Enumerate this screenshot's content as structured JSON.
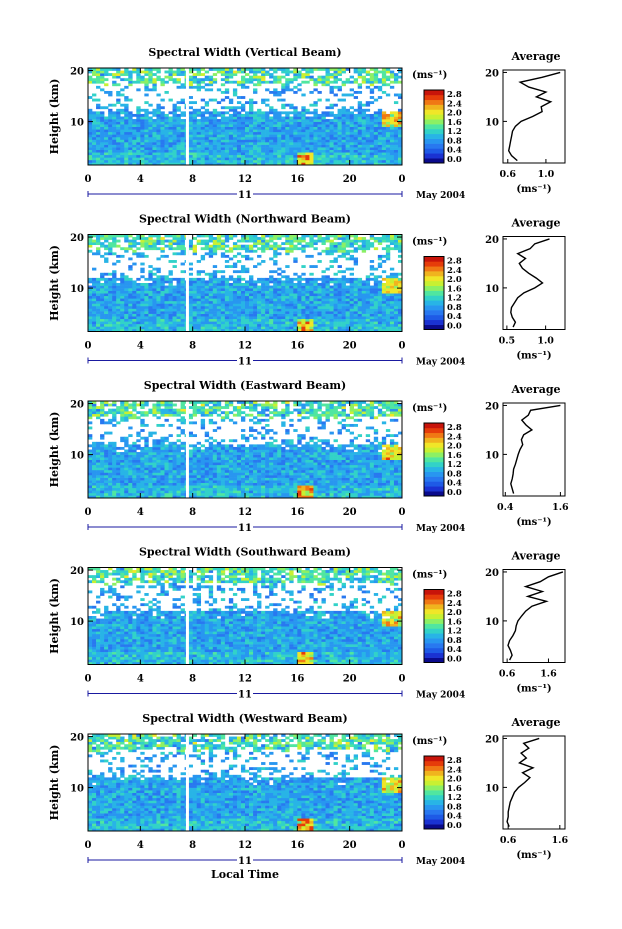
{
  "figure": {
    "x_common_label": "Local Time",
    "date_label": "May 2004",
    "day_label": "11",
    "cbar_unit": "(ms⁻¹)",
    "avg_title": "Average",
    "avg_unit": "(ms⁻¹)",
    "colors": [
      "#0a0a8c",
      "#1a32d2",
      "#1e5ae6",
      "#2878f0",
      "#2896f0",
      "#28b4e6",
      "#32d2c8",
      "#50e6a0",
      "#8cf064",
      "#c8f032",
      "#f0e628",
      "#f0b41e",
      "#f07814",
      "#e63c0a",
      "#c8140a"
    ]
  },
  "chart_data": [
    {
      "type": "heatmap",
      "title": "Spectral Width (Vertical Beam)",
      "xlabel": "",
      "ylabel": "Height (km)",
      "x_ticks": [
        "0",
        "4",
        "8",
        "12",
        "16",
        "20",
        "0"
      ],
      "y_ticks": [
        "20",
        "10"
      ],
      "xlim": [
        0,
        24
      ],
      "ylim": [
        1.5,
        20.5
      ],
      "colorbar": {
        "label": "(ms⁻¹)",
        "ticks": [
          "2.8",
          "2.4",
          "2.0",
          "1.6",
          "1.2",
          "0.8",
          "0.4",
          "0.0"
        ],
        "range": [
          0.0,
          2.8
        ]
      },
      "average_profile": {
        "title": "Average",
        "xlabel": "(ms⁻¹)",
        "x_ticks": [
          "0.6",
          "1.0"
        ],
        "y_ticks": [
          "20",
          "10"
        ],
        "xlim": [
          0.55,
          1.2
        ],
        "heights": [
          2,
          3,
          4,
          5,
          6,
          7,
          8,
          9,
          10,
          11,
          12,
          13,
          14,
          15,
          16,
          17,
          18,
          19,
          20
        ],
        "values": [
          0.7,
          0.64,
          0.61,
          0.62,
          0.63,
          0.64,
          0.65,
          0.68,
          0.74,
          0.86,
          0.96,
          0.95,
          1.05,
          0.9,
          1.0,
          0.82,
          0.73,
          0.96,
          1.15
        ]
      }
    },
    {
      "type": "heatmap",
      "title": "Spectral Width (Northward Beam)",
      "xlabel": "",
      "ylabel": "Height (km)",
      "x_ticks": [
        "0",
        "4",
        "8",
        "12",
        "16",
        "20",
        "0"
      ],
      "y_ticks": [
        "20",
        "10"
      ],
      "xlim": [
        0,
        24
      ],
      "ylim": [
        1.5,
        20.5
      ],
      "colorbar": {
        "label": "(ms⁻¹)",
        "ticks": [
          "2.8",
          "2.4",
          "2.0",
          "1.6",
          "1.2",
          "0.8",
          "0.4",
          "0.0"
        ],
        "range": [
          0.0,
          2.8
        ]
      },
      "average_profile": {
        "title": "Average",
        "xlabel": "(ms⁻¹)",
        "x_ticks": [
          "0.5",
          "1.0"
        ],
        "y_ticks": [
          "20",
          "10"
        ],
        "xlim": [
          0.45,
          1.25
        ],
        "heights": [
          2,
          3,
          4,
          5,
          6,
          7,
          8,
          9,
          10,
          11,
          12,
          13,
          14,
          15,
          16,
          17,
          18,
          19,
          20
        ],
        "values": [
          0.58,
          0.61,
          0.57,
          0.55,
          0.56,
          0.6,
          0.64,
          0.72,
          0.86,
          0.96,
          0.88,
          0.78,
          0.7,
          0.66,
          0.74,
          0.64,
          0.8,
          0.86,
          1.05
        ]
      }
    },
    {
      "type": "heatmap",
      "title": "Spectral Width (Eastward Beam)",
      "xlabel": "",
      "ylabel": "Height (km)",
      "x_ticks": [
        "0",
        "4",
        "8",
        "12",
        "16",
        "20",
        "0"
      ],
      "y_ticks": [
        "20",
        "10"
      ],
      "xlim": [
        0,
        24
      ],
      "ylim": [
        1.5,
        20.5
      ],
      "colorbar": {
        "label": "(ms⁻¹)",
        "ticks": [
          "2.8",
          "2.4",
          "2.0",
          "1.6",
          "1.2",
          "0.8",
          "0.4",
          "0.0"
        ],
        "range": [
          0.0,
          2.8
        ]
      },
      "average_profile": {
        "title": "Average",
        "xlabel": "(ms⁻¹)",
        "x_ticks": [
          "0.4",
          "1.6"
        ],
        "y_ticks": [
          "20",
          "10"
        ],
        "xlim": [
          0.35,
          1.7
        ],
        "heights": [
          2,
          3,
          4,
          5,
          6,
          7,
          8,
          9,
          10,
          11,
          12,
          13,
          14,
          15,
          16,
          17,
          18,
          19,
          20
        ],
        "values": [
          0.58,
          0.55,
          0.52,
          0.55,
          0.57,
          0.58,
          0.62,
          0.65,
          0.68,
          0.72,
          0.78,
          0.75,
          0.8,
          0.98,
          0.85,
          0.76,
          0.9,
          0.95,
          1.6
        ]
      }
    },
    {
      "type": "heatmap",
      "title": "Spectral Width (Southward Beam)",
      "xlabel": "",
      "ylabel": "Height (km)",
      "x_ticks": [
        "0",
        "4",
        "8",
        "12",
        "16",
        "20",
        "0"
      ],
      "y_ticks": [
        "20",
        "10"
      ],
      "xlim": [
        0,
        24
      ],
      "ylim": [
        1.5,
        20.5
      ],
      "colorbar": {
        "label": "(ms⁻¹)",
        "ticks": [
          "2.8",
          "2.4",
          "2.0",
          "1.6",
          "1.2",
          "0.8",
          "0.4",
          "0.0"
        ],
        "range": [
          0.0,
          2.8
        ]
      },
      "average_profile": {
        "title": "Average",
        "xlabel": "(ms⁻¹)",
        "x_ticks": [
          "0.6",
          "1.6"
        ],
        "y_ticks": [
          "20",
          "10"
        ],
        "xlim": [
          0.5,
          2.0
        ],
        "heights": [
          2,
          3,
          4,
          5,
          6,
          7,
          8,
          9,
          10,
          11,
          12,
          13,
          14,
          15,
          16,
          17,
          18,
          19,
          20
        ],
        "values": [
          0.66,
          0.72,
          0.68,
          0.62,
          0.66,
          0.74,
          0.8,
          0.82,
          0.86,
          0.95,
          1.05,
          1.2,
          1.55,
          1.1,
          1.45,
          1.05,
          1.4,
          1.6,
          1.95
        ]
      }
    },
    {
      "type": "heatmap",
      "title": "Spectral Width (Westward Beam)",
      "xlabel": "Local Time",
      "ylabel": "Height (km)",
      "x_ticks": [
        "0",
        "4",
        "8",
        "12",
        "16",
        "20",
        "0"
      ],
      "y_ticks": [
        "20",
        "10"
      ],
      "xlim": [
        0,
        24
      ],
      "ylim": [
        1.5,
        20.5
      ],
      "colorbar": {
        "label": "(ms⁻¹)",
        "ticks": [
          "2.8",
          "2.4",
          "2.0",
          "1.6",
          "1.2",
          "0.8",
          "0.4",
          "0.0"
        ],
        "range": [
          0.0,
          2.8
        ]
      },
      "average_profile": {
        "title": "Average",
        "xlabel": "(ms⁻¹)",
        "x_ticks": [
          "0.6",
          "1.6"
        ],
        "y_ticks": [
          "20",
          "10"
        ],
        "xlim": [
          0.5,
          1.7
        ],
        "heights": [
          2,
          3,
          4,
          5,
          6,
          7,
          8,
          9,
          10,
          11,
          12,
          13,
          14,
          15,
          16,
          17,
          18,
          19,
          20
        ],
        "values": [
          0.62,
          0.58,
          0.6,
          0.6,
          0.62,
          0.64,
          0.68,
          0.72,
          0.8,
          0.92,
          1.02,
          0.88,
          1.08,
          0.82,
          0.95,
          0.85,
          1.0,
          0.9,
          1.2
        ]
      }
    }
  ]
}
